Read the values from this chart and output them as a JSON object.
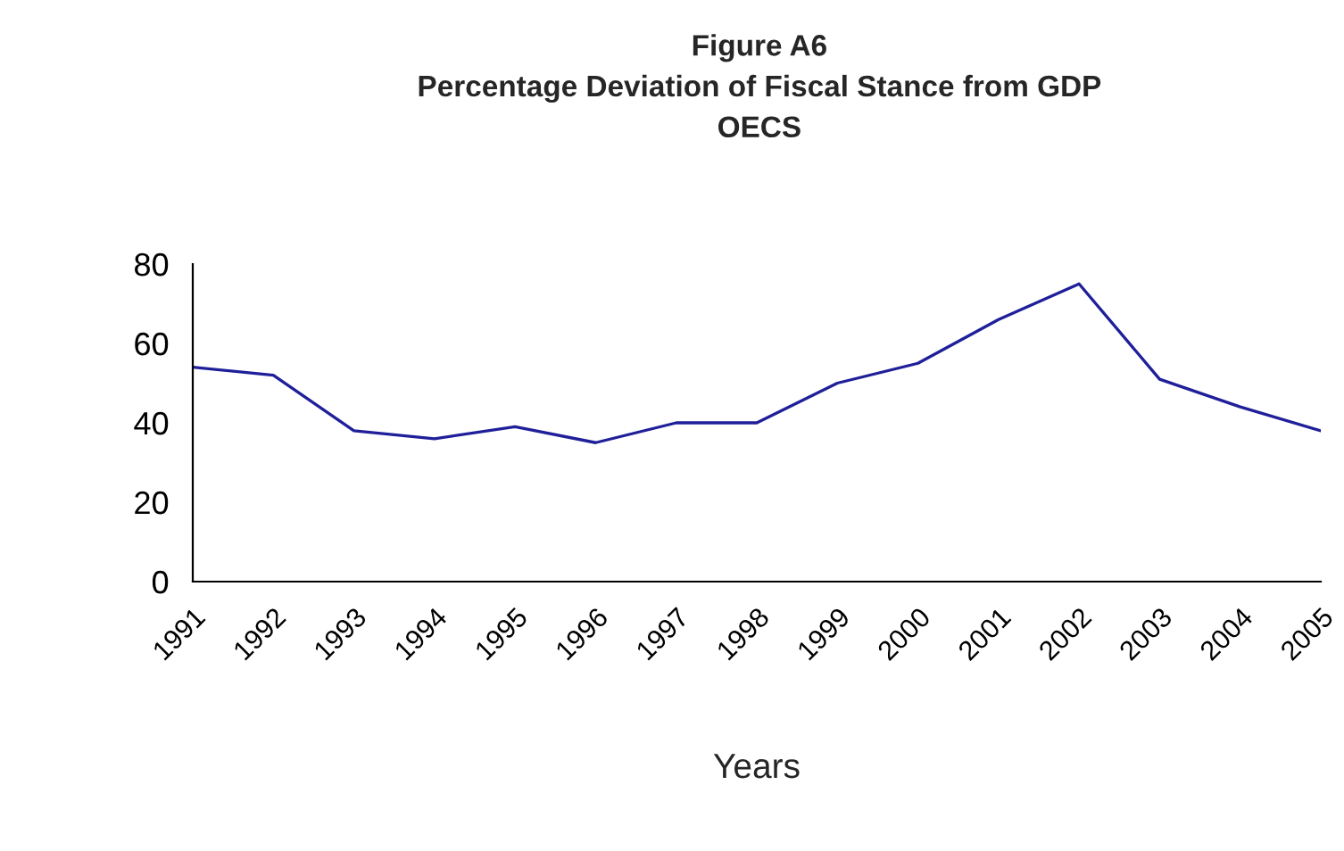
{
  "chart_data": {
    "type": "line",
    "title": "Figure A6\nPercentage Deviation of Fiscal Stance from GDP\nOECS",
    "xlabel": "Years",
    "categories": [
      "1991",
      "1992",
      "1993",
      "1994",
      "1995",
      "1996",
      "1997",
      "1998",
      "1999",
      "2000",
      "2001",
      "2002",
      "2003",
      "2004",
      "2005"
    ],
    "series": [
      {
        "color": "#1f1f9a",
        "values": [
          54,
          52,
          38,
          36,
          39,
          35,
          40,
          40,
          50,
          55,
          66,
          75,
          51,
          44,
          38
        ]
      }
    ],
    "ylim": [
      0,
      80
    ],
    "yticks": [
      0,
      20,
      40,
      60,
      80
    ],
    "grid": false,
    "legend": false,
    "marker": "none",
    "line_style": "solid"
  }
}
